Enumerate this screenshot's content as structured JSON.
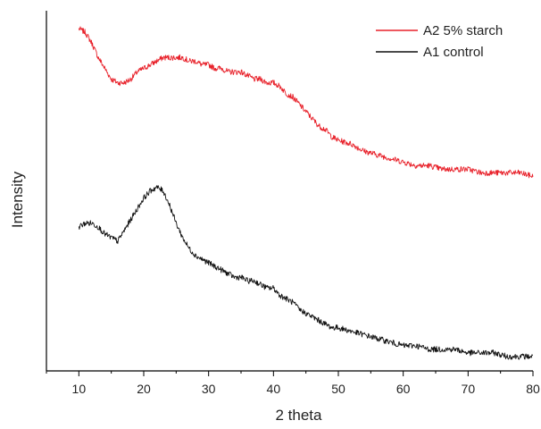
{
  "chart_data": {
    "type": "line",
    "xlabel": "2 theta",
    "ylabel": "Intensity",
    "xlim": [
      5,
      80
    ],
    "ylim": [
      0,
      100
    ],
    "x_ticks": [
      10,
      20,
      30,
      40,
      50,
      60,
      70,
      80
    ],
    "x_tick_labels": [
      "10",
      "20",
      "30",
      "40",
      "50",
      "60",
      "70",
      "80"
    ],
    "y_ticks_shown": false,
    "grid": false,
    "legend_position": "top-right",
    "series": [
      {
        "name": "A2 5% starch",
        "color": "#e8212a",
        "x": [
          10,
          11,
          12,
          13,
          14,
          15,
          16,
          17,
          18,
          19,
          20,
          21,
          22,
          23,
          24,
          25,
          26,
          27,
          28,
          29,
          30,
          31,
          32,
          33,
          34,
          35,
          36,
          37,
          38,
          39,
          40,
          41,
          42,
          43,
          44,
          45,
          46,
          47,
          48,
          49,
          50,
          52,
          54,
          56,
          58,
          60,
          62,
          64,
          66,
          68,
          70,
          72,
          74,
          76,
          78,
          80
        ],
        "y": [
          95,
          94,
          91,
          87,
          84,
          81,
          80,
          80,
          81,
          83,
          84,
          85,
          86,
          87,
          87,
          87,
          87,
          86,
          86,
          85,
          85,
          84,
          84,
          83,
          83,
          83,
          82,
          81,
          81,
          80,
          80,
          79,
          77,
          76,
          74,
          72,
          70,
          68,
          67,
          65,
          64,
          63,
          61,
          60,
          59,
          58,
          57,
          57,
          56,
          56,
          56,
          55,
          55,
          55,
          55,
          54
        ]
      },
      {
        "name": "A1 control",
        "color": "#111111",
        "x": [
          10,
          11,
          12,
          13,
          14,
          15,
          16,
          17,
          18,
          19,
          20,
          21,
          22,
          23,
          24,
          25,
          26,
          27,
          28,
          29,
          30,
          31,
          32,
          33,
          34,
          35,
          36,
          37,
          38,
          39,
          40,
          41,
          42,
          43,
          44,
          45,
          46,
          47,
          48,
          49,
          50,
          52,
          54,
          56,
          58,
          60,
          62,
          64,
          66,
          68,
          70,
          72,
          74,
          76,
          78,
          80
        ],
        "y": [
          40,
          41,
          41,
          40,
          38,
          37,
          36,
          39,
          42,
          45,
          48,
          50,
          51,
          50,
          46,
          41,
          37,
          34,
          32,
          31,
          30,
          29,
          28,
          27,
          26,
          26,
          25,
          25,
          24,
          23,
          23,
          21,
          20,
          19,
          17,
          16,
          15,
          14,
          13,
          12,
          12,
          11,
          10,
          9,
          8,
          7,
          7,
          6,
          6,
          6,
          5,
          5,
          5,
          4,
          4,
          4
        ]
      }
    ]
  }
}
